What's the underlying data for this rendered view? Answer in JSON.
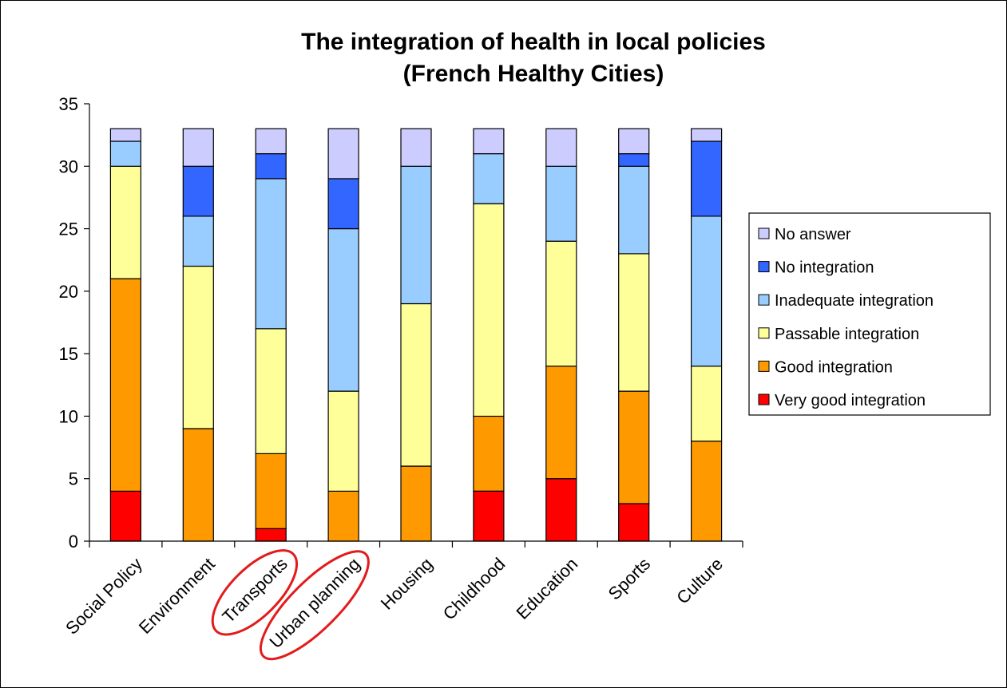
{
  "chart_data": {
    "type": "bar",
    "stacked": true,
    "title": "The integration of health in local policies",
    "subtitle": "(French Healthy Cities)",
    "xlabel": "",
    "ylabel": "",
    "ylim": [
      0,
      35
    ],
    "yticks": [
      0,
      5,
      10,
      15,
      20,
      25,
      30,
      35
    ],
    "grid": false,
    "legend_position": "right",
    "categories": [
      "Social Policy",
      "Environment",
      "Transports",
      "Urban planning",
      "Housing",
      "Childhood",
      "Education",
      "Sports",
      "Culture"
    ],
    "highlighted_categories": [
      "Transports",
      "Urban planning"
    ],
    "highlight_color": "#e31b1b",
    "series": [
      {
        "name": "Very good integration",
        "color": "#ff0000",
        "values": [
          4,
          0,
          1,
          0,
          0,
          4,
          5,
          3,
          0
        ]
      },
      {
        "name": "Good integration",
        "color": "#ff9900",
        "values": [
          17,
          9,
          6,
          4,
          6,
          6,
          9,
          9,
          8
        ]
      },
      {
        "name": "Passable integration",
        "color": "#ffff99",
        "values": [
          9,
          13,
          10,
          8,
          13,
          17,
          10,
          11,
          6
        ]
      },
      {
        "name": "Inadequate integration",
        "color": "#99ccff",
        "values": [
          2,
          4,
          12,
          13,
          11,
          4,
          6,
          7,
          12
        ]
      },
      {
        "name": "No integration",
        "color": "#3366ff",
        "values": [
          0,
          4,
          2,
          4,
          0,
          0,
          0,
          1,
          6
        ]
      },
      {
        "name": "No answer",
        "color": "#ccccff",
        "values": [
          1,
          3,
          2,
          4,
          3,
          2,
          3,
          2,
          1
        ]
      }
    ]
  }
}
